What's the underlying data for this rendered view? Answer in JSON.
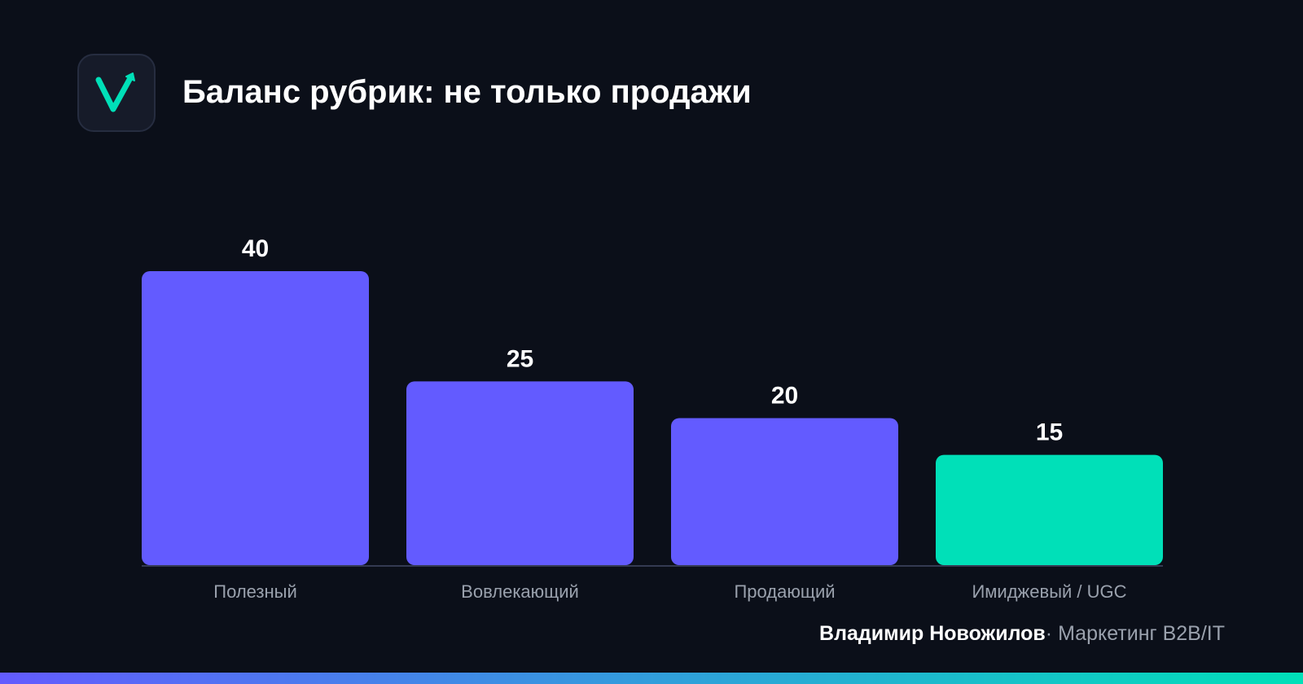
{
  "header": {
    "title": "Баланс рубрик: не только продажи"
  },
  "chart_data": {
    "type": "bar",
    "title": "Баланс рубрик: не только продажи",
    "categories": [
      "Полезный",
      "Вовлекающий",
      "Продающий",
      "Имиджевый / UGC"
    ],
    "values": [
      40,
      25,
      20,
      15
    ],
    "bar_colors": [
      "#635bff",
      "#635bff",
      "#635bff",
      "#00e0b8"
    ],
    "ylim": [
      0,
      40
    ],
    "grid": false,
    "legend": "none",
    "data_labels": true
  },
  "footer": {
    "author": "Владимир Новожилов",
    "separator": "·",
    "role": "Маркетинг B2B/IT"
  },
  "colors": {
    "background": "#0b0f19",
    "accent_primary": "#635bff",
    "accent_secondary": "#00e0b8",
    "axis": "#343a52",
    "label_muted": "#9aa1ad"
  },
  "icons": {
    "logo": "checkmark-arrow-icon"
  }
}
